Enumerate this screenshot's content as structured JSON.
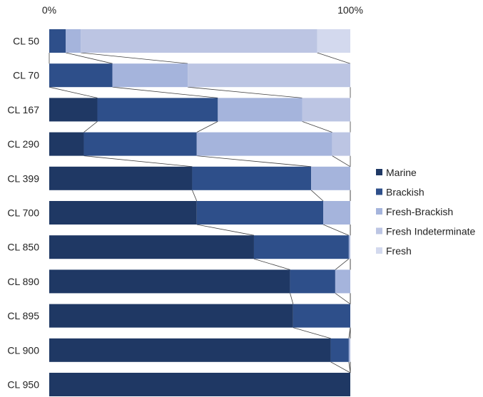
{
  "chart_data": {
    "type": "bar",
    "orientation": "horizontal",
    "stacked": "100%",
    "categories": [
      "CL 50",
      "CL 70",
      "CL 167",
      "CL 290",
      "CL 399",
      "CL 700",
      "CL 850",
      "CL 890",
      "CL 895",
      "CL 900",
      "CL 950"
    ],
    "x_ticks": [
      "0%",
      "100%"
    ],
    "xlim": [
      0,
      100
    ],
    "grid": false,
    "connector_lines": true,
    "legend_position": "right",
    "series": [
      {
        "name": "Marine",
        "color": "#1f3864",
        "values": [
          0,
          0,
          16,
          11.5,
          47.5,
          49,
          68,
          80,
          81,
          93.5,
          100
        ]
      },
      {
        "name": "Brackish",
        "color": "#2e4f8a",
        "values": [
          5.5,
          21,
          40,
          37.5,
          39.5,
          42,
          31.5,
          15,
          19,
          6,
          0
        ]
      },
      {
        "name": "Fresh-Brackish",
        "color": "#a5b4dc",
        "values": [
          5,
          25,
          28,
          45,
          13,
          9,
          0.5,
          5,
          0,
          0.5,
          0
        ]
      },
      {
        "name": "Fresh Indeterminate",
        "color": "#bcc5e3",
        "values": [
          78.5,
          54,
          16,
          6,
          0,
          0,
          0,
          0,
          0,
          0,
          0
        ]
      },
      {
        "name": "Fresh",
        "color": "#d3d9ee",
        "values": [
          11,
          0,
          0,
          0,
          0,
          0,
          0,
          0,
          0,
          0,
          0
        ]
      }
    ]
  }
}
